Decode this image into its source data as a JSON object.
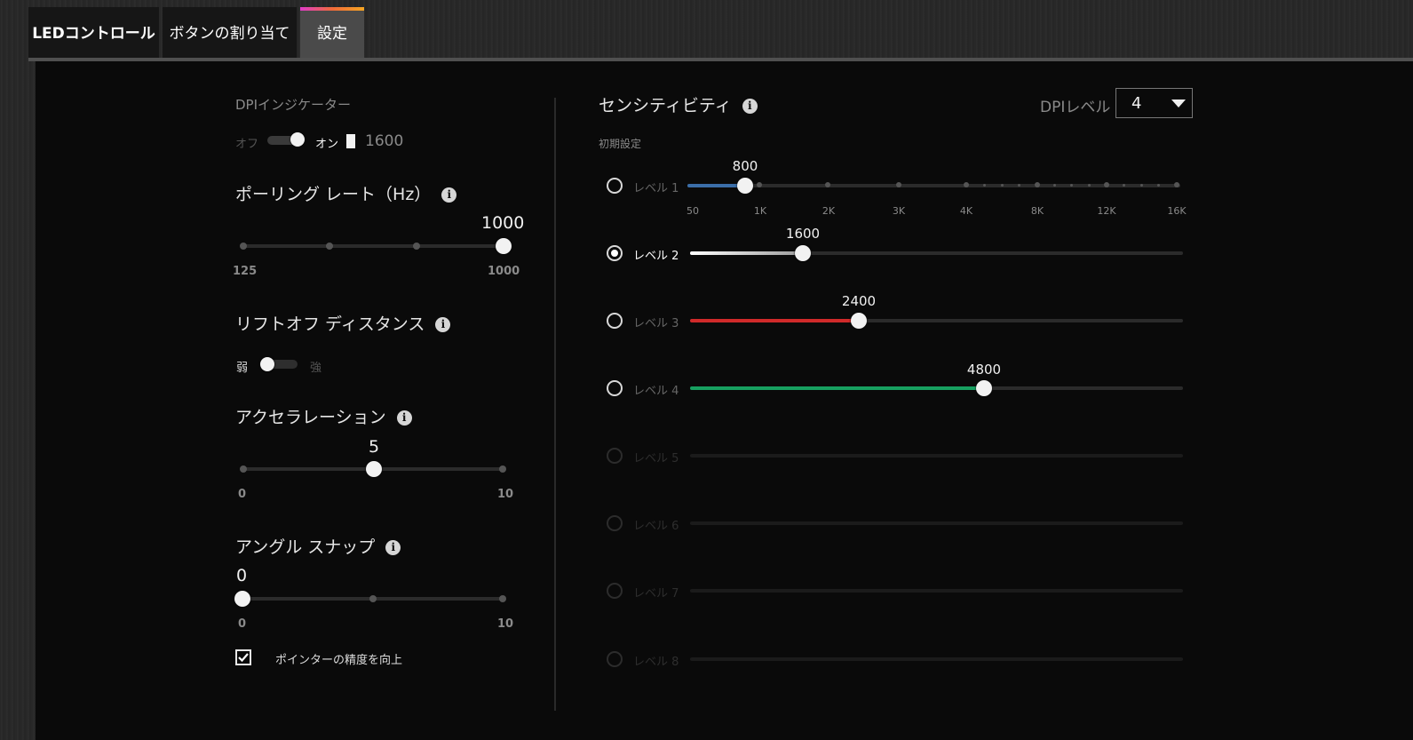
{
  "tabs": [
    {
      "label": "LEDコントロール"
    },
    {
      "label": "ボタンの割り当て"
    },
    {
      "label": "設定"
    }
  ],
  "dpi_indicator": {
    "title": "DPIインジケーター",
    "off_label": "オフ",
    "on_label": "オン",
    "value": "1600",
    "state": "on"
  },
  "polling": {
    "title": "ポーリング レート（Hz）",
    "value": "1000",
    "min_label": "125",
    "max_label": "1000"
  },
  "liftoff": {
    "title": "リフトオフ ディスタンス",
    "low_label": "弱",
    "high_label": "強",
    "state": "low"
  },
  "acceleration": {
    "title": "アクセラレーション",
    "value": "5",
    "min_label": "0",
    "max_label": "10"
  },
  "angle_snap": {
    "title": "アングル スナップ",
    "value": "0",
    "min_label": "0",
    "max_label": "10"
  },
  "pointer_precision": {
    "label": "ポインターの精度を向上",
    "checked": true
  },
  "sensitivity": {
    "title": "センシティビティ",
    "preset_label": "初期設定",
    "dpi_level_label": "DPIレベル",
    "dpi_level_value": "4",
    "ticks": [
      "50",
      "1K",
      "2K",
      "3K",
      "4K",
      "8K",
      "12K",
      "16K"
    ],
    "levels": [
      {
        "label": "レベル 1",
        "value": "800",
        "color": "#3b6ea8"
      },
      {
        "label": "レベル 2",
        "value": "1600",
        "color": "#ffffff",
        "selected": true
      },
      {
        "label": "レベル 3",
        "value": "2400",
        "color": "#d02a2a"
      },
      {
        "label": "レベル 4",
        "value": "4800",
        "color": "#17a060"
      },
      {
        "label": "レベル 5"
      },
      {
        "label": "レベル 6"
      },
      {
        "label": "レベル 7"
      },
      {
        "label": "レベル 8"
      }
    ]
  }
}
